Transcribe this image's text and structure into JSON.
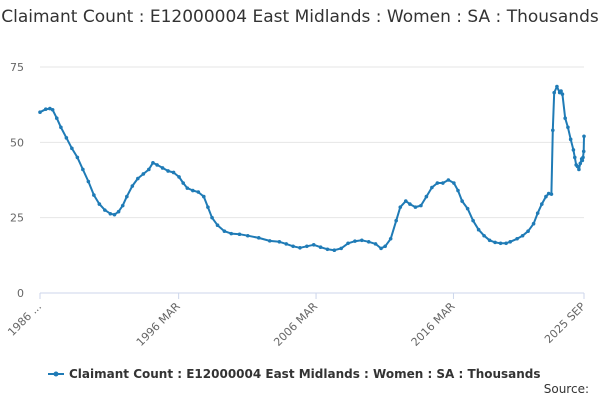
{
  "chart_data": {
    "type": "line",
    "title": "Claimant Count : E12000004 East Midlands : Women : SA : Thousands",
    "xlabel": "",
    "ylabel": "",
    "ylim": [
      0,
      75
    ],
    "yticks": [
      0,
      25,
      50,
      75
    ],
    "x_tick_labels": [
      "1986 ...",
      "1996 MAR",
      "2006 MAR",
      "2016 MAR",
      "2025 SEP"
    ],
    "x_tick_positions": [
      1986.08,
      1996.17,
      2006.17,
      2016.17,
      2025.67
    ],
    "xlim": [
      1986.08,
      2025.67
    ],
    "grid": "horizontal",
    "legend_position": "bottom",
    "color": "#1f7bb6",
    "series": [
      {
        "name": "Claimant Count : E12000004 East Midlands : Women : SA : Thousands",
        "points": [
          [
            1986.08,
            60.0
          ],
          [
            1986.5,
            61.0
          ],
          [
            1986.8,
            61.2
          ],
          [
            1987.0,
            60.8
          ],
          [
            1987.3,
            58.0
          ],
          [
            1987.6,
            55.0
          ],
          [
            1988.0,
            51.5
          ],
          [
            1988.4,
            48.0
          ],
          [
            1988.8,
            45.0
          ],
          [
            1989.2,
            41.0
          ],
          [
            1989.6,
            37.0
          ],
          [
            1990.0,
            32.5
          ],
          [
            1990.4,
            29.5
          ],
          [
            1990.8,
            27.5
          ],
          [
            1991.2,
            26.3
          ],
          [
            1991.5,
            26.0
          ],
          [
            1991.8,
            27.0
          ],
          [
            1992.1,
            29.0
          ],
          [
            1992.4,
            32.0
          ],
          [
            1992.8,
            35.5
          ],
          [
            1993.2,
            38.0
          ],
          [
            1993.6,
            39.5
          ],
          [
            1994.0,
            41.0
          ],
          [
            1994.3,
            43.2
          ],
          [
            1994.6,
            42.5
          ],
          [
            1995.0,
            41.5
          ],
          [
            1995.4,
            40.5
          ],
          [
            1995.8,
            40.0
          ],
          [
            1996.2,
            38.5
          ],
          [
            1996.5,
            36.5
          ],
          [
            1996.8,
            34.8
          ],
          [
            1997.2,
            34.0
          ],
          [
            1997.6,
            33.5
          ],
          [
            1998.0,
            32.0
          ],
          [
            1998.3,
            28.5
          ],
          [
            1998.6,
            25.0
          ],
          [
            1999.0,
            22.5
          ],
          [
            1999.5,
            20.5
          ],
          [
            2000.0,
            19.7
          ],
          [
            2000.6,
            19.5
          ],
          [
            2001.2,
            19.0
          ],
          [
            2002.0,
            18.3
          ],
          [
            2002.8,
            17.3
          ],
          [
            2003.5,
            17.0
          ],
          [
            2004.0,
            16.3
          ],
          [
            2004.5,
            15.5
          ],
          [
            2005.0,
            15.0
          ],
          [
            2005.5,
            15.5
          ],
          [
            2006.0,
            16.0
          ],
          [
            2006.5,
            15.2
          ],
          [
            2007.0,
            14.5
          ],
          [
            2007.5,
            14.2
          ],
          [
            2008.0,
            14.8
          ],
          [
            2008.5,
            16.5
          ],
          [
            2009.0,
            17.2
          ],
          [
            2009.5,
            17.5
          ],
          [
            2010.0,
            17.0
          ],
          [
            2010.5,
            16.3
          ],
          [
            2010.9,
            14.8
          ],
          [
            2011.2,
            15.5
          ],
          [
            2011.6,
            18.0
          ],
          [
            2012.0,
            24.0
          ],
          [
            2012.3,
            28.5
          ],
          [
            2012.7,
            30.5
          ],
          [
            2013.0,
            29.5
          ],
          [
            2013.4,
            28.5
          ],
          [
            2013.8,
            29.0
          ],
          [
            2014.2,
            32.0
          ],
          [
            2014.6,
            35.0
          ],
          [
            2015.0,
            36.5
          ],
          [
            2015.4,
            36.5
          ],
          [
            2015.8,
            37.5
          ],
          [
            2016.2,
            36.5
          ],
          [
            2016.5,
            34.0
          ],
          [
            2016.8,
            30.5
          ],
          [
            2017.2,
            28.0
          ],
          [
            2017.6,
            24.0
          ],
          [
            2018.0,
            21.0
          ],
          [
            2018.4,
            19.0
          ],
          [
            2018.8,
            17.5
          ],
          [
            2019.2,
            16.8
          ],
          [
            2019.6,
            16.5
          ],
          [
            2020.0,
            16.5
          ],
          [
            2020.3,
            17.0
          ],
          [
            2020.8,
            18.0
          ],
          [
            2021.2,
            19.0
          ],
          [
            2021.6,
            20.5
          ],
          [
            2022.0,
            23.0
          ],
          [
            2022.3,
            26.5
          ],
          [
            2022.6,
            29.5
          ],
          [
            2022.9,
            32.0
          ],
          [
            2023.1,
            33.0
          ],
          [
            2023.3,
            32.8
          ],
          [
            2023.4,
            54.0
          ],
          [
            2023.5,
            66.5
          ],
          [
            2023.7,
            68.5
          ],
          [
            2023.9,
            66.5
          ],
          [
            2024.0,
            67.0
          ],
          [
            2024.1,
            66.0
          ],
          [
            2024.3,
            58.0
          ],
          [
            2024.5,
            55.0
          ],
          [
            2024.7,
            51.0
          ],
          [
            2024.9,
            47.5
          ],
          [
            2025.0,
            45.0
          ],
          [
            2025.1,
            42.5
          ],
          [
            2025.2,
            42.0
          ],
          [
            2025.3,
            41.0
          ],
          [
            2025.4,
            43.0
          ],
          [
            2025.5,
            44.5
          ],
          [
            2025.55,
            44.0
          ],
          [
            2025.6,
            45.0
          ],
          [
            2025.65,
            47.0
          ],
          [
            2025.67,
            52.0
          ]
        ]
      }
    ]
  },
  "legend": {
    "label": "Claimant Count : E12000004 East Midlands : Women : SA : Thousands"
  },
  "source": {
    "label": "Source:"
  }
}
